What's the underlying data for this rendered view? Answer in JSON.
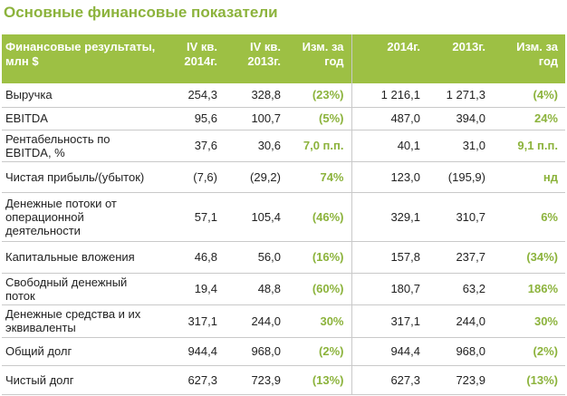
{
  "title": "Основные финансовые показатели",
  "table": {
    "header": [
      "Финансовые результаты, млн $",
      "IV кв. 2014г.",
      "IV кв. 2013г.",
      "Изм. за год",
      "2014г.",
      "2013г.",
      "Изм. за год"
    ],
    "rows": [
      [
        "Выручка",
        "254,3",
        "328,8",
        "(23%)",
        "1 216,1",
        "1 271,3",
        "(4%)"
      ],
      [
        "EBITDA",
        "95,6",
        "100,7",
        "(5%)",
        "487,0",
        "394,0",
        "24%"
      ],
      [
        "Рентабельность по EBITDA, %",
        "37,6",
        "30,6",
        "7,0 п.п.",
        "40,1",
        "31,0",
        "9,1 п.п."
      ],
      [
        "Чистая прибыль/(убыток)",
        "(7,6)",
        "(29,2)",
        "74%",
        "123,0",
        "(195,9)",
        "нд"
      ],
      [
        "Денежные потоки от операционной деятельности",
        "57,1",
        "105,4",
        "(46%)",
        "329,1",
        "310,7",
        "6%"
      ],
      [
        "Капитальные вложения",
        "46,8",
        "56,0",
        "(16%)",
        "157,8",
        "237,7",
        "(34%)"
      ],
      [
        "Свободный денежный поток",
        "19,4",
        "48,8",
        "(60%)",
        "180,7",
        "63,2",
        "186%"
      ],
      [
        "Денежные средства и их эквиваленты",
        "317,1",
        "244,0",
        "30%",
        "317,1",
        "244,0",
        "30%"
      ],
      [
        "Общий долг",
        "944,4",
        "968,0",
        "(2%)",
        "944,4",
        "968,0",
        "(2%)"
      ],
      [
        "Чистый долг",
        "627,3",
        "723,9",
        "(13%)",
        "627,3",
        "723,9",
        "(13%)"
      ]
    ]
  }
}
